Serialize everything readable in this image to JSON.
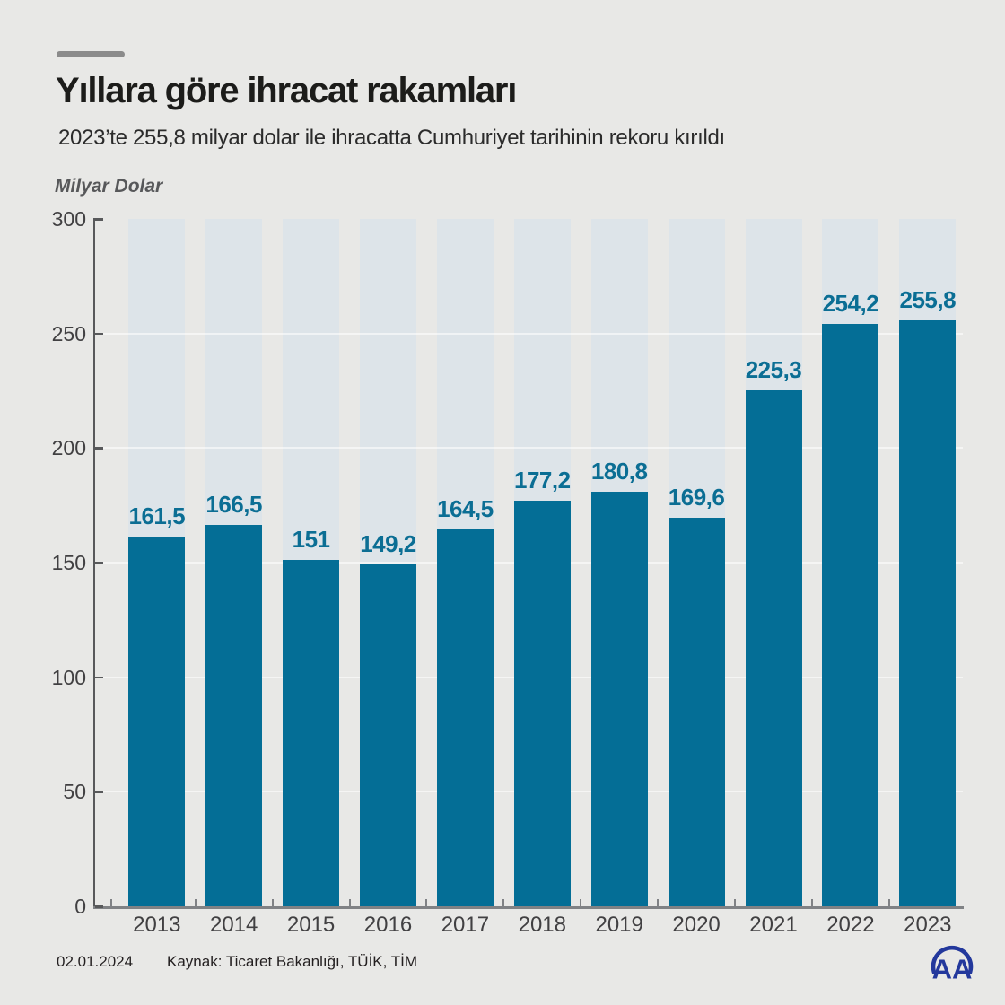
{
  "header": {
    "title": "Yıllara göre ihracat rakamları",
    "subtitle": "2023’te 255,8 milyar dolar ile ihracatta Cumhuriyet tarihinin rekoru kırıldı",
    "unit_label": "Milyar Dolar"
  },
  "chart_data": {
    "type": "bar",
    "title": "Yıllara göre ihracat rakamları",
    "xlabel": "",
    "ylabel": "Milyar Dolar",
    "categories": [
      "2013",
      "2014",
      "2015",
      "2016",
      "2017",
      "2018",
      "2019",
      "2020",
      "2021",
      "2022",
      "2023"
    ],
    "values": [
      161.5,
      166.5,
      151,
      149.2,
      164.5,
      177.2,
      180.8,
      169.6,
      225.3,
      254.2,
      255.8
    ],
    "value_labels": [
      "161,5",
      "166,5",
      "151",
      "149,2",
      "164,5",
      "177,2",
      "180,8",
      "169,6",
      "225,3",
      "254,2",
      "255,8"
    ],
    "ylim": [
      0,
      300
    ],
    "yticks": [
      0,
      50,
      100,
      150,
      200,
      250,
      300
    ],
    "grid": true,
    "legend": false
  },
  "footer": {
    "date": "02.01.2024",
    "source": "Kaynak: Ticaret Bakanlığı, TÜİK, TİM",
    "logo_text": "AA"
  },
  "colors": {
    "page_bg": "#e8e8e6",
    "accent_dash": "#8b8b8b",
    "title": "#1c1c1a",
    "subtitle": "#2b2b2b",
    "unit": "#57585a",
    "bar": "#046e96",
    "bar_track": "#dde4e9",
    "value_label": "#0b6e94",
    "axis": "#58595b",
    "x_axis": "#808285",
    "tick_label": "#414042",
    "grid": "rgba(255,255,255,0.55)",
    "footer": "#231f20",
    "logo": "#23389c"
  }
}
